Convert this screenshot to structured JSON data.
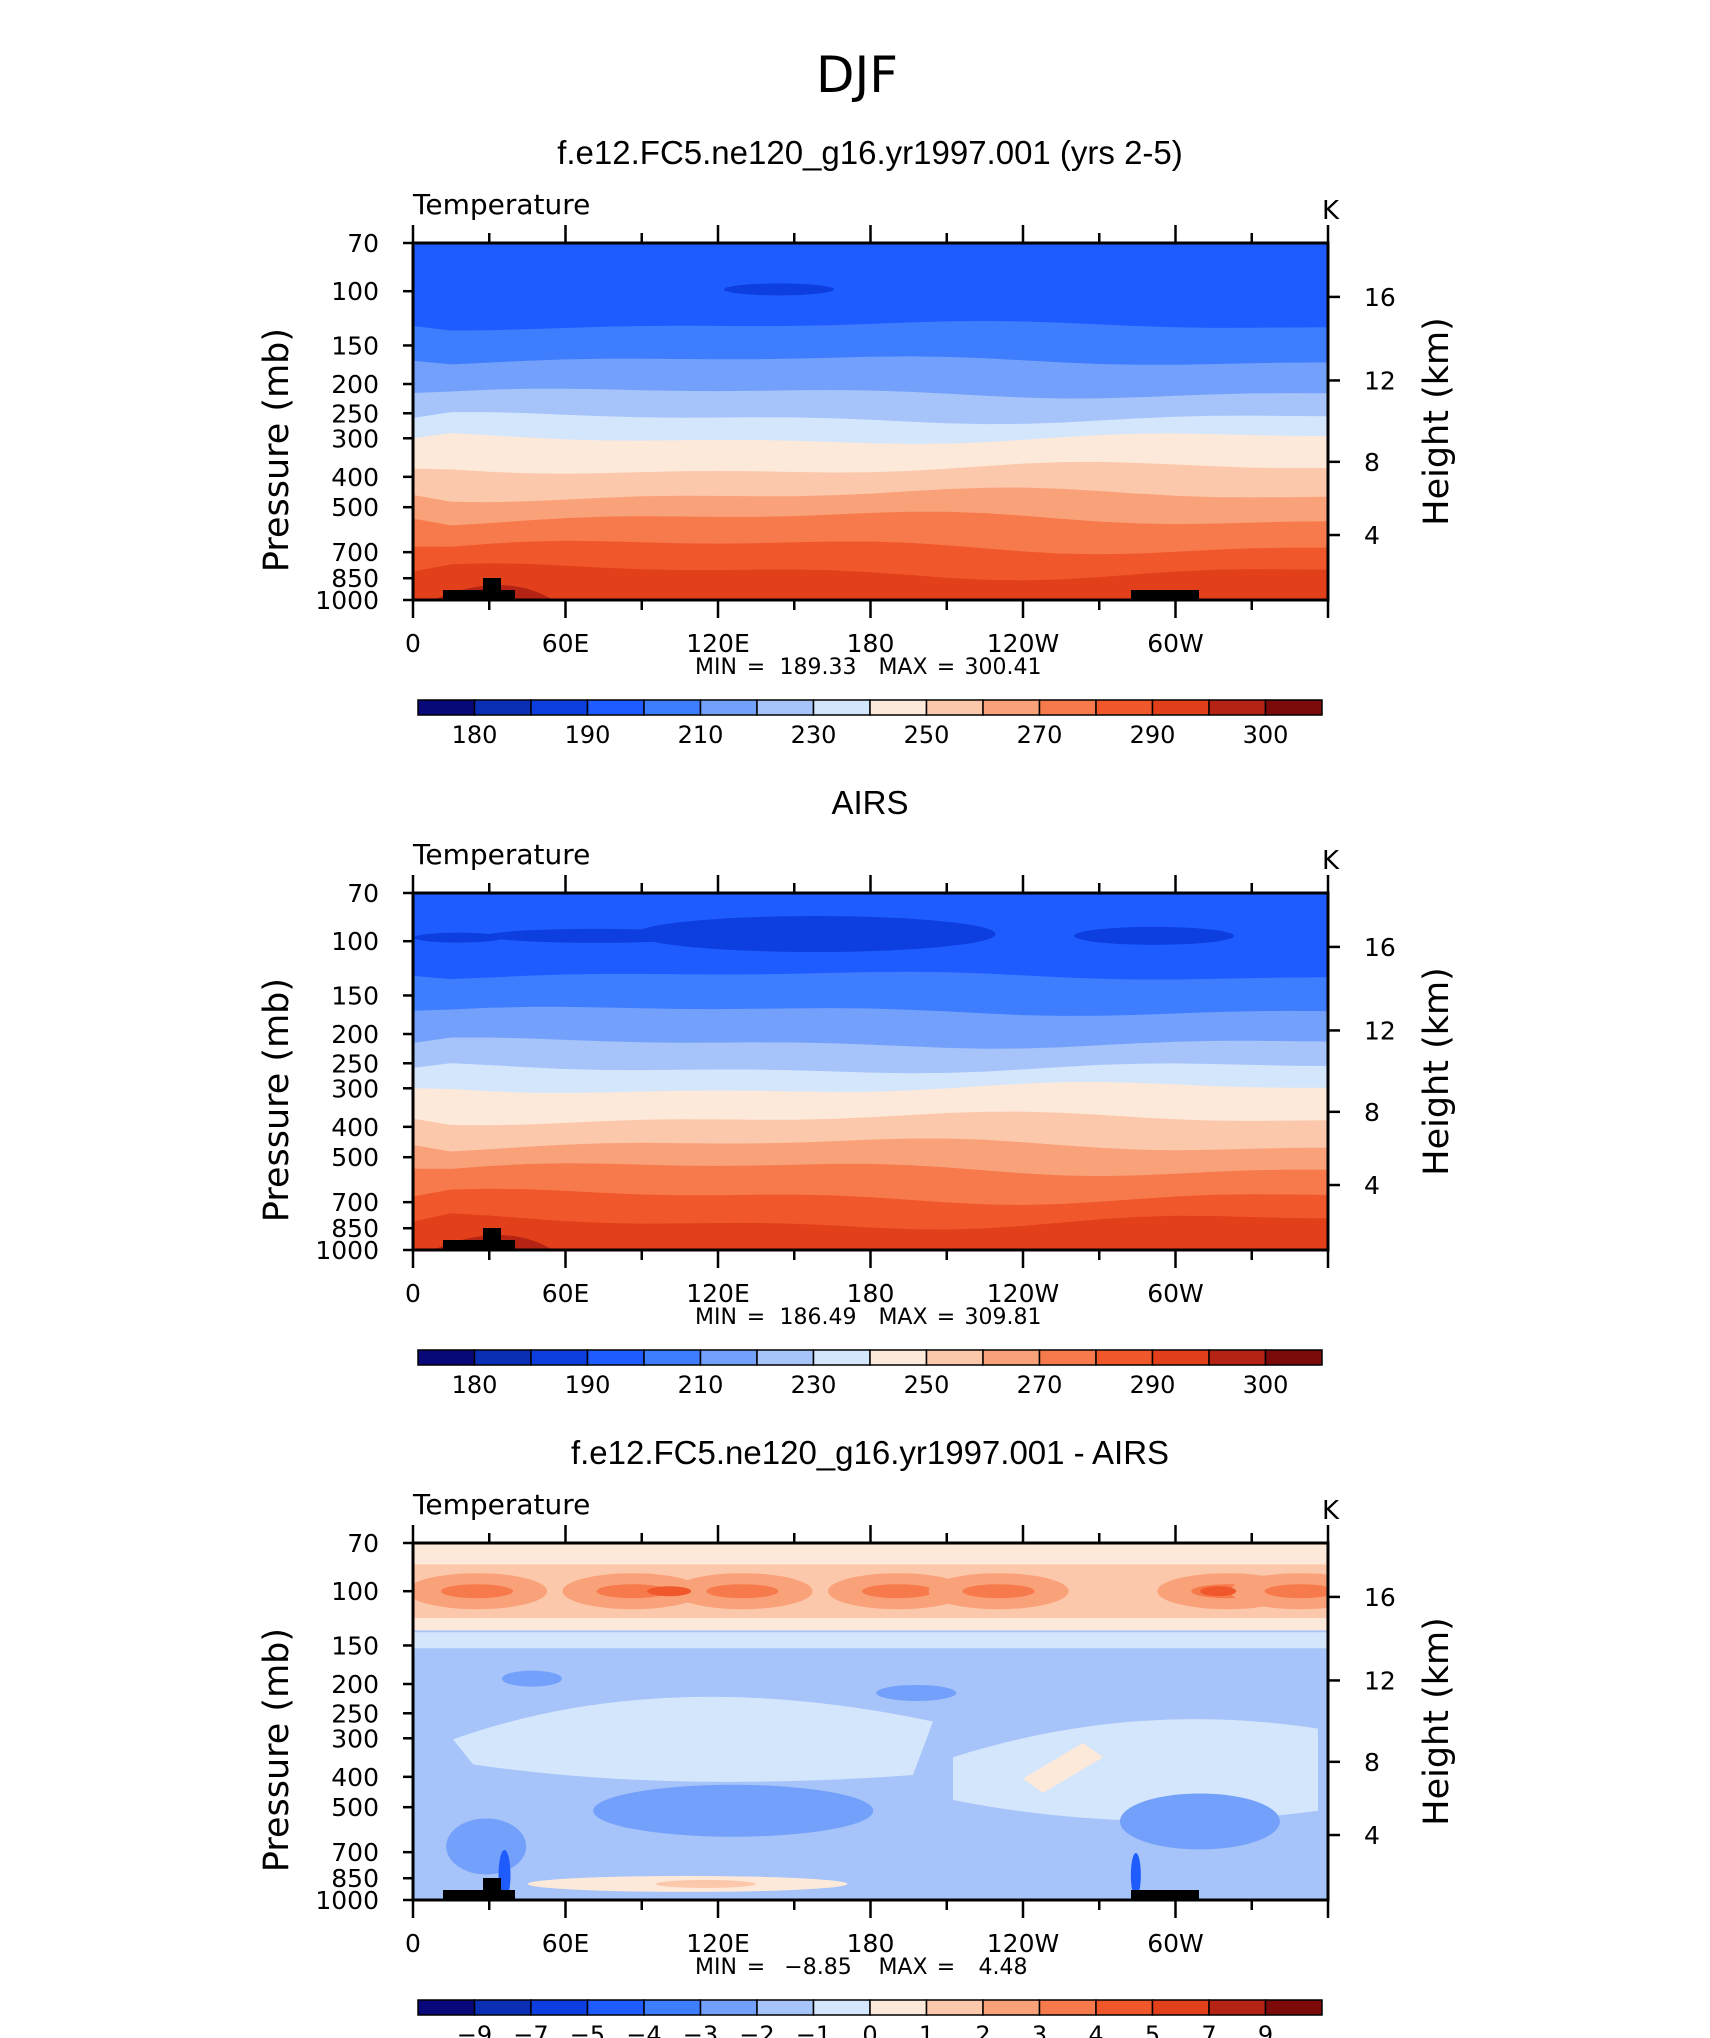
{
  "page_title": "DJF",
  "colors": {
    "temp_levels": [
      "#08087a",
      "#0a2fb5",
      "#0d3fe0",
      "#1f5cff",
      "#3f7dff",
      "#73a0fa",
      "#a6c3fa",
      "#d4e6fc",
      "#fde9d9",
      "#fcc8ab",
      "#f9a27a",
      "#f77a4d",
      "#f0582b",
      "#e2401b",
      "#b42314",
      "#7d0a0a"
    ],
    "diff_levels": [
      "#08087a",
      "#0a2fb5",
      "#0d3fe0",
      "#1f5cff",
      "#3f7dff",
      "#73a0fa",
      "#a6c3fa",
      "#d4e6fc",
      "#fde9d9",
      "#fcc8ab",
      "#f9a27a",
      "#f77a4d",
      "#f0582b",
      "#e2401b",
      "#b42314",
      "#7d0a0a"
    ]
  },
  "chart_data": [
    {
      "type": "heatmap",
      "title": "f.e12.FC5.ne120_g16.yr1997.001 (yrs 2-5)",
      "subtitle": "Temperature",
      "units": "K",
      "xlabel": "",
      "ylabel": "Pressure (mb)",
      "y2label": "Height (km)",
      "x_ticks": [
        "0",
        "60E",
        "120E",
        "180",
        "120W",
        "60W"
      ],
      "y_ticks": [
        "70",
        "100",
        "150",
        "200",
        "250",
        "300",
        "400",
        "500",
        "700",
        "850",
        "1000"
      ],
      "y2_ticks": [
        "16",
        "12",
        "8",
        "4"
      ],
      "min_label": "MIN",
      "min_value": "189.33",
      "max_label": "MAX",
      "max_value": "300.41",
      "colorbar_labels": [
        "180",
        "190",
        "210",
        "230",
        "250",
        "270",
        "290",
        "300"
      ],
      "layers_top_down": [
        3,
        4,
        5,
        6,
        7,
        8,
        9,
        10,
        11,
        12,
        13
      ]
    },
    {
      "type": "heatmap",
      "title": "AIRS",
      "subtitle": "Temperature",
      "units": "K",
      "xlabel": "",
      "ylabel": "Pressure (mb)",
      "y2label": "Height (km)",
      "x_ticks": [
        "0",
        "60E",
        "120E",
        "180",
        "120W",
        "60W"
      ],
      "y_ticks": [
        "70",
        "100",
        "150",
        "200",
        "250",
        "300",
        "400",
        "500",
        "700",
        "850",
        "1000"
      ],
      "y2_ticks": [
        "16",
        "12",
        "8",
        "4"
      ],
      "min_label": "MIN",
      "min_value": "186.49",
      "max_label": "MAX",
      "max_value": "309.81",
      "colorbar_labels": [
        "180",
        "190",
        "210",
        "230",
        "250",
        "270",
        "290",
        "300"
      ],
      "layers_top_down": [
        3,
        4,
        5,
        6,
        7,
        8,
        9,
        10,
        11,
        12,
        13
      ]
    },
    {
      "type": "heatmap",
      "title": "f.e12.FC5.ne120_g16.yr1997.001 - AIRS",
      "subtitle": "Temperature",
      "units": "K",
      "xlabel": "",
      "ylabel": "Pressure (mb)",
      "y2label": "Height (km)",
      "x_ticks": [
        "0",
        "60E",
        "120E",
        "180",
        "120W",
        "60W"
      ],
      "y_ticks": [
        "70",
        "100",
        "150",
        "200",
        "250",
        "300",
        "400",
        "500",
        "700",
        "850",
        "1000"
      ],
      "y2_ticks": [
        "16",
        "12",
        "8",
        "4"
      ],
      "min_label": "MIN",
      "min_value": "−8.85",
      "max_label": "MAX",
      "max_value": "4.48",
      "colorbar_labels": [
        "−9",
        "−7",
        "−5",
        "−4",
        "−3",
        "−2",
        "−1",
        "0",
        "1",
        "2",
        "3",
        "4",
        "5",
        "7",
        "9"
      ],
      "range": [
        -8.85,
        4.48
      ]
    }
  ]
}
